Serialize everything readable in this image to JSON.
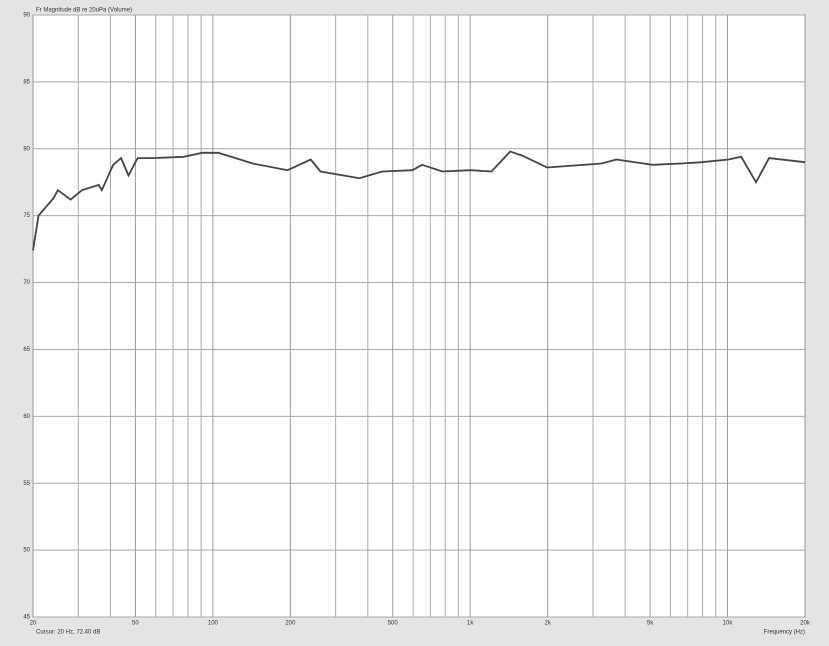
{
  "chart_data": {
    "type": "line",
    "title": "Fr Magnitude dB re 20uPa (Volume)",
    "x_label": "Frequency (Hz)",
    "cursor_text": "Cursor: 20 Hz, 72.40 dB",
    "log_x": true,
    "grid": true,
    "xlim": [
      20,
      20000
    ],
    "xticks": [
      20,
      50,
      100,
      200,
      500,
      {
        "value": 1000,
        "label": "1k"
      },
      {
        "value": 2000,
        "label": "2k"
      },
      {
        "value": 5000,
        "label": "5k"
      },
      {
        "value": 10000,
        "label": "10k"
      },
      {
        "value": 20000,
        "label": "20k"
      }
    ],
    "xgrid": [
      30,
      40,
      60,
      70,
      80,
      90,
      300,
      400,
      600,
      700,
      800,
      900,
      3000,
      4000,
      6000,
      7000,
      8000,
      9000
    ],
    "ylim": [
      45,
      90
    ],
    "yticks": [
      45,
      50,
      55,
      60,
      65,
      70,
      75,
      80,
      85,
      90
    ],
    "series": [
      {
        "name": "Fr Magnitude",
        "color": "#444444",
        "x": [
          20,
          21,
          24,
          25,
          28,
          31,
          36,
          37,
          41,
          44,
          47,
          51,
          58,
          77,
          91,
          105,
          143,
          195,
          240,
          262,
          371,
          456,
          596,
          650,
          780,
          1000,
          1210,
          1430,
          1590,
          1990,
          3240,
          3700,
          5100,
          6600,
          7950,
          10100,
          11300,
          12900,
          14500,
          20000
        ],
        "values": [
          72.4,
          75.0,
          76.3,
          76.9,
          76.2,
          76.9,
          77.3,
          76.9,
          78.8,
          79.3,
          78.0,
          79.3,
          79.3,
          79.4,
          79.7,
          79.7,
          78.9,
          78.4,
          79.2,
          78.3,
          77.8,
          78.3,
          78.4,
          78.8,
          78.3,
          78.4,
          78.3,
          79.8,
          79.5,
          78.6,
          78.9,
          79.2,
          78.8,
          78.9,
          79.0,
          79.2,
          79.4,
          77.5,
          79.3,
          79.0
        ]
      }
    ]
  }
}
